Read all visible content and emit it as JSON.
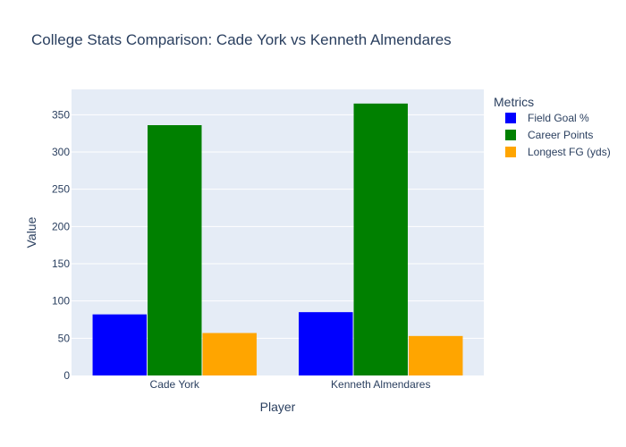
{
  "chart_data": {
    "type": "bar",
    "title": "College Stats Comparison: Cade York vs Kenneth Almendares",
    "xlabel": "Player",
    "ylabel": "Value",
    "categories": [
      "Cade York",
      "Kenneth Almendares"
    ],
    "series": [
      {
        "name": "Field Goal %",
        "values": [
          82,
          85
        ],
        "color": "#0000ff"
      },
      {
        "name": "Career Points",
        "values": [
          336,
          365
        ],
        "color": "#008000"
      },
      {
        "name": "Longest FG (yds)",
        "values": [
          57,
          53
        ],
        "color": "#ffa500"
      }
    ],
    "yticks": [
      0,
      50,
      100,
      150,
      200,
      250,
      300,
      350
    ],
    "ylim": [
      0,
      384
    ],
    "grid": true,
    "legend": {
      "title": "Metrics",
      "placement": "right"
    },
    "plot_background": "#e5ecf6"
  }
}
